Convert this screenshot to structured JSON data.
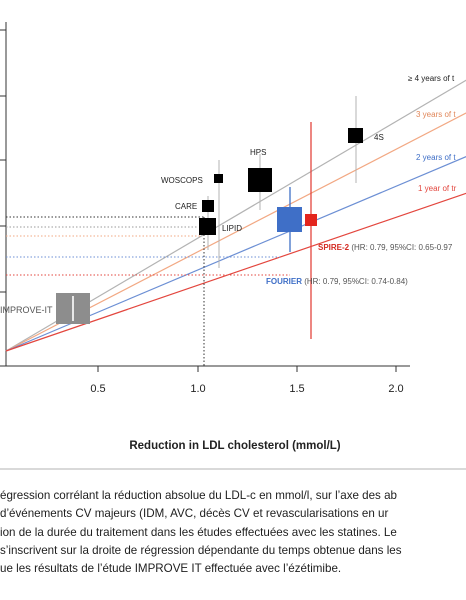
{
  "chart_data": {
    "type": "scatter",
    "xlabel": "Reduction in LDL cholesterol (mmol/L)",
    "x_ticks": [
      "0.5",
      "1.0",
      "1.5",
      "2.0"
    ],
    "xlim": [
      0,
      2.2
    ],
    "grid": false,
    "studies": [
      {
        "name": "IMPROVE-IT",
        "x": 0.35,
        "y": 0.06
      },
      {
        "name": "WOSCOPS",
        "x": 1.1,
        "y": 0.2
      },
      {
        "name": "CARE",
        "x": 1.03,
        "y": 0.16
      },
      {
        "name": "LIPID",
        "x": 1.03,
        "y": 0.13
      },
      {
        "name": "HPS",
        "x": 1.3,
        "y": 0.195
      },
      {
        "name": "4S",
        "x": 1.79,
        "y": 0.245
      },
      {
        "name": "FOURIER",
        "x": 1.44,
        "y": 0.14,
        "note": "(HR: 0.79, 95%CI: 0.74-0.84)"
      },
      {
        "name": "SPIRE-2",
        "x": 1.55,
        "y": 0.14,
        "note": "(HR: 0.79, 95%CI: 0.65-0.97"
      }
    ],
    "regression_lines": [
      {
        "label": "≥ 4 years of t",
        "color": "#b3b3b3"
      },
      {
        "label": "3 years of t",
        "color": "#f2a883"
      },
      {
        "label": "2 years of t",
        "color": "#6c8fd4"
      },
      {
        "label": "1 year of tr",
        "color": "#e3463e"
      }
    ]
  },
  "caption_lines": [
    "égression corrélant la réduction absolue du LDL-c en mmol/l, sur l’axe des ab",
    "d’événements CV majeurs (IDM, AVC, décès CV et revascularisations en ur",
    "ion de la durée du traitement dans les études effectuées avec les statines. Le",
    "s’inscrivent sur la droite de régression dépendante du temps obtenue dans les",
    "ue les résultats de l’étude IMPROVE IT effectuée avec l’ézétimibe."
  ]
}
